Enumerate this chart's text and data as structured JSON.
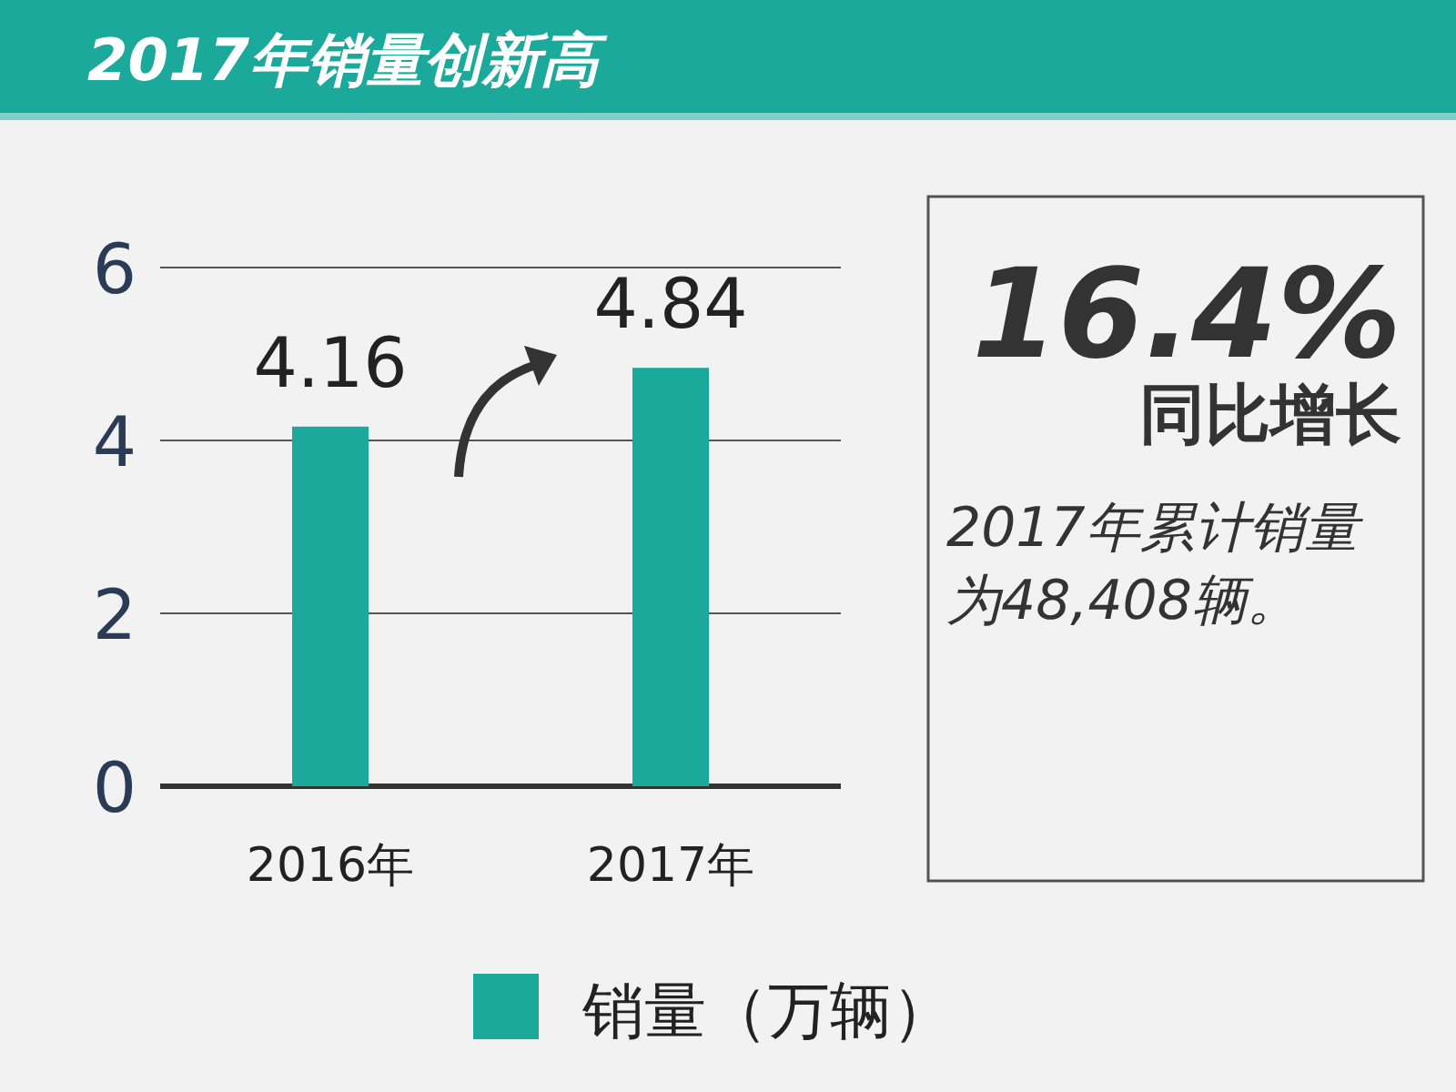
{
  "chart_data": {
    "type": "bar",
    "title": "2017年销量创新高",
    "categories": [
      "2016年",
      "2017年"
    ],
    "series": [
      {
        "name": "销量（万辆）",
        "color": "#1aa99a",
        "values": [
          4.16,
          4.84
        ]
      }
    ],
    "ylim": [
      0,
      6
    ],
    "yticks": [
      0,
      2,
      4,
      6
    ],
    "grid": "y",
    "legend": "bottom",
    "data_labels": true,
    "annotations": [
      "16.4%",
      "同比增长",
      "2017年累计销量为48,408辆。"
    ]
  }
}
